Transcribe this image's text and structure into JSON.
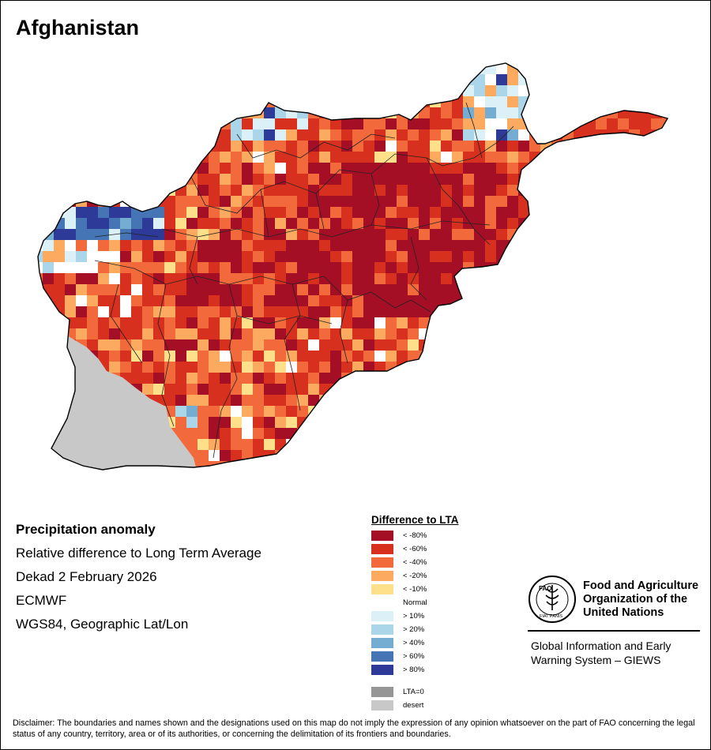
{
  "title": "Afghanistan",
  "map_info": [
    "Precipitation anomaly",
    "Relative difference to Long Term Average",
    "Dekad 2 February 2026",
    "ECMWF",
    "WGS84, Geographic Lat/Lon"
  ],
  "legend": {
    "title": "Difference to LTA",
    "items": [
      {
        "label": "< -80%",
        "color": "#a50f26"
      },
      {
        "label": "< -60%",
        "color": "#d7301f"
      },
      {
        "label": "< -40%",
        "color": "#f26a3b"
      },
      {
        "label": "< -20%",
        "color": "#fbaa60"
      },
      {
        "label": "< -10%",
        "color": "#fee08b"
      },
      {
        "label": "Normal",
        "color": "#ffffff"
      },
      {
        "label": "> 10%",
        "color": "#dcf1f7"
      },
      {
        "label": "> 20%",
        "color": "#abd6e9"
      },
      {
        "label": "> 40%",
        "color": "#74add1"
      },
      {
        "label": "> 60%",
        "color": "#4575b4"
      },
      {
        "label": "> 80%",
        "color": "#2d3a98"
      }
    ],
    "extra": [
      {
        "label": "LTA=0",
        "color": "#969696"
      },
      {
        "label": "desert",
        "color": "#c8c8c8"
      }
    ]
  },
  "organization": {
    "logo_text": "FAO",
    "logo_motto": "FIAT PANIS",
    "name_lines": [
      "Food and Agriculture",
      "Organization of the",
      "United Nations"
    ],
    "system_lines": [
      "Global Information and Early",
      "Warning System – GIEWS"
    ]
  },
  "disclaimer": "Disclaimer: The boundaries and names shown and the designations used on this map do not imply the expression of any opinion whatsoever on the part of FAO concerning the legal status of any country, territory, area or of its authorities, or concerning the delimitation of its frontiers and boundaries.",
  "colors": {
    "country_outline": "#000000",
    "province_lines": "#222222"
  }
}
